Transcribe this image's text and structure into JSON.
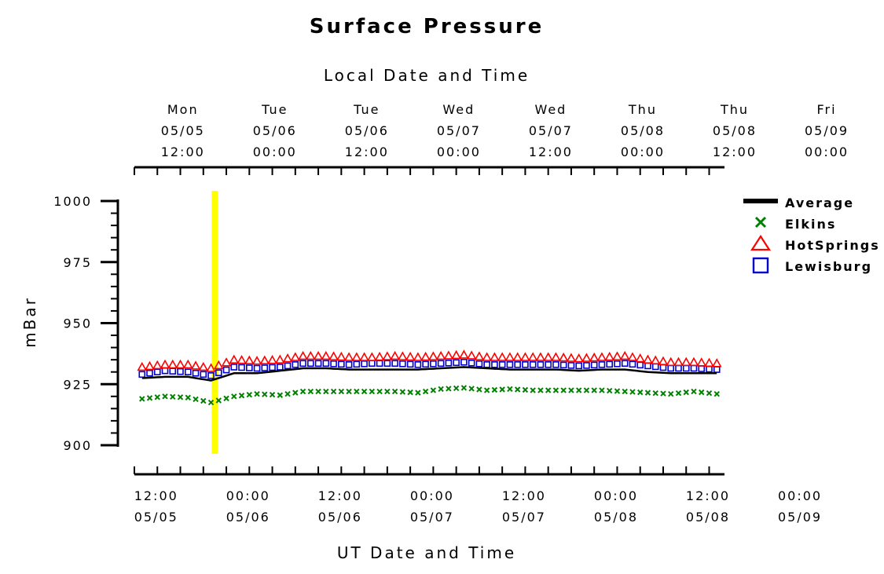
{
  "chart_data": {
    "type": "line",
    "title": "Surface Pressure",
    "top_axis_title": "Local Date and Time",
    "xlabel": "UT Date and Time",
    "ylabel": "mBar",
    "ylim": [
      900,
      1000
    ],
    "yticks": [
      "900",
      "925",
      "950",
      "975",
      "1000"
    ],
    "x_range_hours": [
      -1,
      76
    ],
    "top_tick_labels": [
      {
        "day": "Mon",
        "date": "05/05",
        "time": "12:00"
      },
      {
        "day": "Tue",
        "date": "05/06",
        "time": "00:00"
      },
      {
        "day": "Tue",
        "date": "05/06",
        "time": "12:00"
      },
      {
        "day": "Wed",
        "date": "05/07",
        "time": "00:00"
      },
      {
        "day": "Wed",
        "date": "05/07",
        "time": "12:00"
      },
      {
        "day": "Thu",
        "date": "05/08",
        "time": "00:00"
      },
      {
        "day": "Thu",
        "date": "05/08",
        "time": "12:00"
      },
      {
        "day": "Fri",
        "date": "05/09",
        "time": "00:00"
      }
    ],
    "bottom_tick_labels": [
      {
        "time": "12:00",
        "date": "05/05"
      },
      {
        "time": "00:00",
        "date": "05/06"
      },
      {
        "time": "12:00",
        "date": "05/06"
      },
      {
        "time": "00:00",
        "date": "05/07"
      },
      {
        "time": "12:00",
        "date": "05/07"
      },
      {
        "time": "00:00",
        "date": "05/08"
      },
      {
        "time": "12:00",
        "date": "05/08"
      },
      {
        "time": "00:00",
        "date": "05/09"
      }
    ],
    "highlight_marker": {
      "color": "#ffff00",
      "x_hours": 9.5
    },
    "grid": false,
    "legend_position": "right",
    "x_hours": [
      0,
      3,
      6,
      9,
      12,
      15,
      18,
      21,
      24,
      27,
      30,
      33,
      36,
      39,
      42,
      45,
      48,
      51,
      54,
      57,
      60,
      63,
      66,
      69,
      72,
      75
    ],
    "series": [
      {
        "name": "Average",
        "color": "#000000",
        "marker": "line",
        "values": [
          927.5,
          928,
          928,
          926.5,
          929.5,
          929.5,
          930.5,
          931.5,
          931.5,
          931,
          931,
          931,
          931,
          931.5,
          932,
          931.5,
          931,
          931,
          931,
          930.5,
          931,
          931,
          930,
          929.5,
          929.5,
          929.5
        ]
      },
      {
        "name": "Elkins",
        "color": "#008000",
        "marker": "x",
        "values": [
          919,
          920,
          919.5,
          917.5,
          920,
          921,
          920.5,
          922,
          922,
          922,
          922,
          922,
          921.5,
          923,
          923.5,
          922.5,
          923,
          922.5,
          922.5,
          922.5,
          922.5,
          922,
          921.5,
          921,
          922,
          921
        ]
      },
      {
        "name": "HotSprings",
        "color": "#ff0000",
        "marker": "triangle",
        "values": [
          932,
          933,
          933,
          931.5,
          935,
          934.5,
          935,
          936.5,
          936.5,
          936,
          936,
          936.5,
          936,
          936.5,
          937,
          936,
          936,
          936,
          936,
          935.5,
          936,
          936.5,
          935,
          934,
          934,
          933.5
        ]
      },
      {
        "name": "Lewisburg",
        "color": "#0000cc",
        "marker": "square",
        "values": [
          929,
          930.5,
          930,
          928.5,
          932,
          931.5,
          932,
          933.5,
          933.5,
          933,
          933.5,
          933.5,
          933,
          933.5,
          934,
          933,
          933,
          933,
          933,
          932.5,
          933,
          933.5,
          932.5,
          931.5,
          931.5,
          931
        ]
      }
    ]
  }
}
